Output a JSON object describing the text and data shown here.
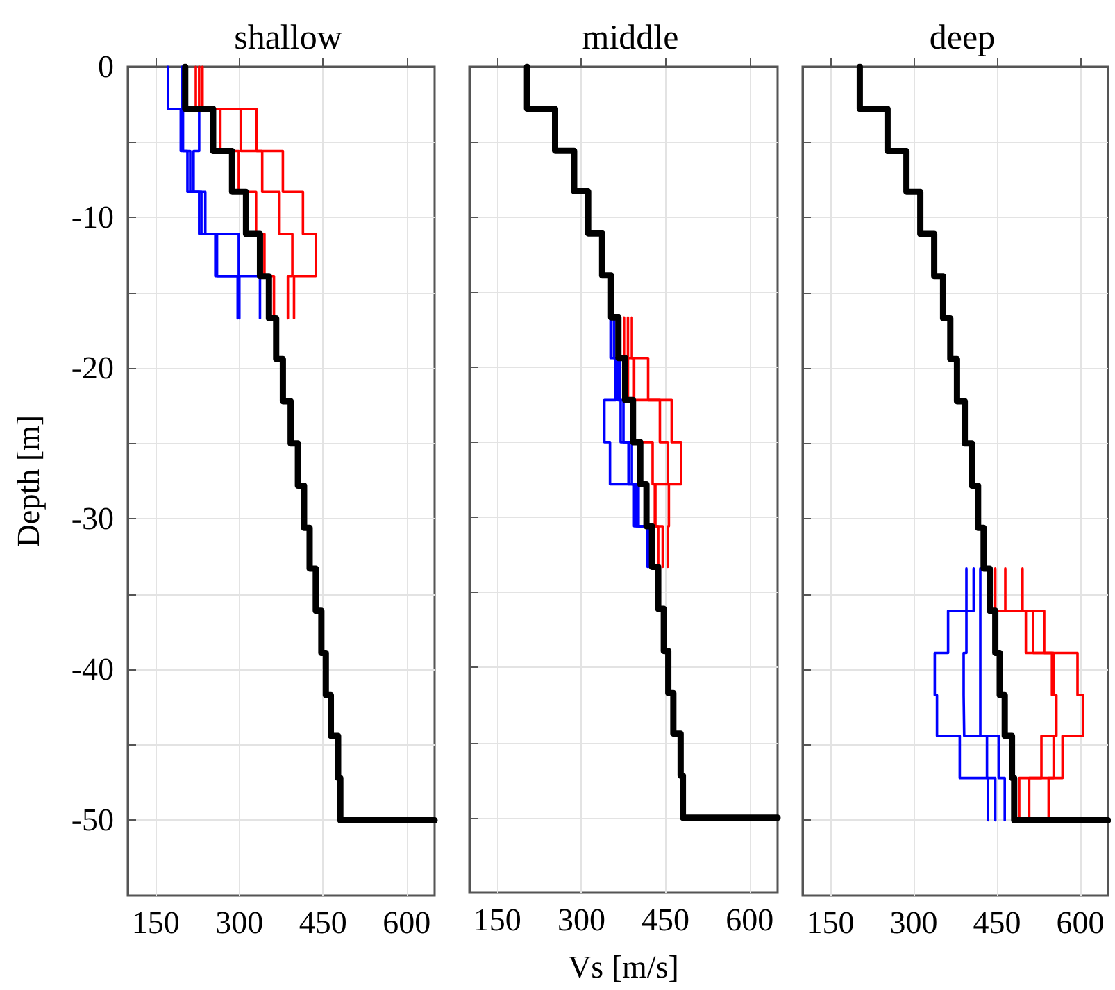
{
  "chart_data": [
    {
      "type": "line",
      "title": "shallow",
      "ylabel": "Depth [m]",
      "xlim": [
        100,
        650
      ],
      "xticks": [
        150,
        300,
        450,
        600
      ],
      "ylim": [
        -55,
        0
      ],
      "yticks": [
        0,
        {
          "value": -5,
          "label": null
        },
        -10,
        {
          "value": -15,
          "label": null
        },
        -20,
        {
          "value": -25,
          "label": null
        },
        -30,
        {
          "value": -35,
          "label": null
        },
        -40,
        {
          "value": -45,
          "label": null
        },
        -50
      ],
      "grid": true,
      "marker": "none",
      "line_style": "solid",
      "series": [
        {
          "color": "#0000ff",
          "x": [
            172,
            172,
            195,
            195,
            207,
            207,
            228,
            228,
            257,
            257,
            297,
            297
          ],
          "values": [
            0,
            -2.8,
            -2.8,
            -5.6,
            -5.6,
            -8.3,
            -8.3,
            -11.1,
            -11.1,
            -13.9,
            -13.9,
            -16.7
          ]
        },
        {
          "color": "#0000ff",
          "x": [
            197,
            197,
            199,
            199,
            212,
            212,
            232,
            232,
            260,
            260,
            300,
            300
          ],
          "values": [
            0,
            -2.8,
            -2.8,
            -5.6,
            -5.6,
            -8.3,
            -8.3,
            -11.1,
            -11.1,
            -13.9,
            -13.9,
            -16.7
          ]
        },
        {
          "color": "#0000ff",
          "x": [
            199,
            199,
            228,
            228,
            218,
            218,
            239,
            239,
            299,
            299,
            337,
            337
          ],
          "values": [
            0,
            -2.8,
            -2.8,
            -5.6,
            -5.6,
            -8.3,
            -8.3,
            -11.1,
            -11.1,
            -13.9,
            -13.9,
            -16.7
          ]
        },
        {
          "color": "#ff0000",
          "x": [
            222,
            222,
            266,
            266,
            299,
            299,
            330,
            330,
            345,
            345,
            362,
            362
          ],
          "values": [
            0,
            -2.8,
            -2.8,
            -5.6,
            -5.6,
            -8.3,
            -8.3,
            -11.1,
            -11.1,
            -13.9,
            -13.9,
            -16.7
          ]
        },
        {
          "color": "#ff0000",
          "x": [
            228,
            228,
            303,
            303,
            341,
            341,
            372,
            372,
            395,
            395,
            387,
            387
          ],
          "values": [
            0,
            -2.8,
            -2.8,
            -5.6,
            -5.6,
            -8.3,
            -8.3,
            -11.1,
            -11.1,
            -13.9,
            -13.9,
            -16.7
          ]
        },
        {
          "color": "#ff0000",
          "x": [
            234,
            234,
            331,
            331,
            378,
            378,
            414,
            414,
            437,
            437,
            398,
            398
          ],
          "values": [
            0,
            -2.8,
            -2.8,
            -5.6,
            -5.6,
            -8.3,
            -8.3,
            -11.1,
            -11.1,
            -13.9,
            -13.9,
            -16.7
          ]
        },
        {
          "color": "#000000",
          "x": [
            203,
            203,
            253,
            253,
            287,
            287,
            312,
            312,
            337,
            337,
            353,
            353,
            366,
            366,
            378,
            378,
            392,
            392,
            405,
            405,
            416,
            416,
            426,
            426,
            437,
            437,
            447,
            447,
            455,
            455,
            464,
            464,
            477,
            477,
            481,
            481,
            650
          ],
          "values": [
            0,
            -2.8,
            -2.8,
            -5.6,
            -5.6,
            -8.3,
            -8.3,
            -11.1,
            -11.1,
            -13.9,
            -13.9,
            -16.7,
            -16.7,
            -19.4,
            -19.4,
            -22.2,
            -22.2,
            -25,
            -25,
            -27.8,
            -27.8,
            -30.6,
            -30.6,
            -33.3,
            -33.3,
            -36.1,
            -36.1,
            -38.9,
            -38.9,
            -41.7,
            -41.7,
            -44.4,
            -44.4,
            -47.2,
            -47.2,
            -50,
            -50
          ]
        }
      ]
    },
    {
      "type": "line",
      "title": "middle",
      "xlabel": "Vs [m/s]",
      "xlim": [
        100,
        650
      ],
      "xticks": [
        150,
        300,
        450,
        600
      ],
      "ylim": [
        -55,
        0
      ],
      "yticks": [
        0,
        {
          "value": -5,
          "label": null
        },
        -10,
        {
          "value": -15,
          "label": null
        },
        -20,
        {
          "value": -25,
          "label": null
        },
        -30,
        {
          "value": -35,
          "label": null
        },
        -40,
        {
          "value": -45,
          "label": null
        },
        -50
      ],
      "grid": true,
      "marker": "none",
      "line_style": "solid",
      "tick_labels": "x",
      "series": [
        {
          "color": "#0000ff",
          "x": [
            352,
            352,
            361,
            361,
            341,
            341,
            351,
            351,
            394,
            394,
            418,
            418
          ],
          "values": [
            -16.7,
            -19.4,
            -19.4,
            -22.2,
            -22.2,
            -25,
            -25,
            -27.8,
            -27.8,
            -30.6,
            -30.6,
            -33.3
          ]
        },
        {
          "color": "#0000ff",
          "x": [
            358,
            358,
            365,
            365,
            370,
            370,
            384,
            384,
            398,
            398,
            420,
            420
          ],
          "values": [
            -16.7,
            -19.4,
            -19.4,
            -22.2,
            -22.2,
            -25,
            -25,
            -27.8,
            -27.8,
            -30.6,
            -30.6,
            -33.3
          ]
        },
        {
          "color": "#0000ff",
          "x": [
            363,
            363,
            369,
            369,
            375,
            375,
            390,
            390,
            402,
            402,
            423,
            423
          ],
          "values": [
            -16.7,
            -19.4,
            -19.4,
            -22.2,
            -22.2,
            -25,
            -25,
            -27.8,
            -27.8,
            -30.6,
            -30.6,
            -33.3
          ]
        },
        {
          "color": "#ff0000",
          "x": [
            376,
            376,
            383,
            383,
            394,
            394,
            427,
            427,
            431,
            431,
            437,
            437
          ],
          "values": [
            -16.7,
            -19.4,
            -19.4,
            -22.2,
            -22.2,
            -25,
            -25,
            -27.8,
            -27.8,
            -30.6,
            -30.6,
            -33.3
          ]
        },
        {
          "color": "#ff0000",
          "x": [
            383,
            383,
            394,
            394,
            440,
            440,
            454,
            454,
            432,
            432,
            445,
            445
          ],
          "values": [
            -16.7,
            -19.4,
            -19.4,
            -22.2,
            -22.2,
            -25,
            -25,
            -27.8,
            -27.8,
            -30.6,
            -30.6,
            -33.3
          ]
        },
        {
          "color": "#ff0000",
          "x": [
            390,
            390,
            419,
            419,
            461,
            461,
            478,
            478,
            456,
            456,
            454,
            454
          ],
          "values": [
            -16.7,
            -19.4,
            -19.4,
            -22.2,
            -22.2,
            -25,
            -25,
            -27.8,
            -27.8,
            -30.6,
            -30.6,
            -33.3
          ]
        },
        {
          "color": "#000000",
          "x": [
            203,
            203,
            253,
            253,
            287,
            287,
            312,
            312,
            337,
            337,
            353,
            353,
            366,
            366,
            378,
            378,
            392,
            392,
            405,
            405,
            416,
            416,
            426,
            426,
            437,
            437,
            447,
            447,
            455,
            455,
            464,
            464,
            477,
            477,
            481,
            481,
            650
          ],
          "values": [
            0,
            -2.8,
            -2.8,
            -5.6,
            -5.6,
            -8.3,
            -8.3,
            -11.1,
            -11.1,
            -13.9,
            -13.9,
            -16.7,
            -16.7,
            -19.4,
            -19.4,
            -22.2,
            -22.2,
            -25,
            -25,
            -27.8,
            -27.8,
            -30.6,
            -30.6,
            -33.3,
            -33.3,
            -36.1,
            -36.1,
            -38.9,
            -38.9,
            -41.7,
            -41.7,
            -44.4,
            -44.4,
            -47.2,
            -47.2,
            -50,
            -50
          ]
        }
      ]
    },
    {
      "type": "line",
      "title": "deep",
      "xlim": [
        100,
        650
      ],
      "xticks": [
        150,
        300,
        450,
        600
      ],
      "ylim": [
        -55,
        0
      ],
      "yticks": [
        0,
        {
          "value": -5,
          "label": null
        },
        -10,
        {
          "value": -15,
          "label": null
        },
        -20,
        {
          "value": -25,
          "label": null
        },
        -30,
        {
          "value": -35,
          "label": null
        },
        -40,
        {
          "value": -45,
          "label": null
        },
        -50
      ],
      "grid": true,
      "marker": "none",
      "line_style": "solid",
      "tick_labels": "x",
      "series": [
        {
          "color": "#0000ff",
          "x": [
            395,
            395,
            362,
            362,
            338,
            338,
            342,
            342,
            383,
            383,
            434,
            434
          ],
          "values": [
            -33.3,
            -36.1,
            -36.1,
            -38.9,
            -38.9,
            -41.7,
            -41.7,
            -44.4,
            -44.4,
            -47.2,
            -47.2,
            -50
          ]
        },
        {
          "color": "#0000ff",
          "x": [
            408,
            408,
            395,
            395,
            390,
            390,
            391,
            391,
            432,
            432,
            447,
            447
          ],
          "values": [
            -33.3,
            -36.1,
            -36.1,
            -38.9,
            -38.9,
            -41.7,
            -41.7,
            -44.4,
            -44.4,
            -47.2,
            -47.2,
            -50
          ]
        },
        {
          "color": "#0000ff",
          "x": [
            420,
            420,
            420,
            420,
            420,
            420,
            420,
            420,
            453,
            453,
            464,
            464
          ],
          "values": [
            -33.3,
            -36.1,
            -36.1,
            -38.9,
            -38.9,
            -41.7,
            -41.7,
            -44.4,
            -44.4,
            -47.2,
            -47.2,
            -50
          ]
        },
        {
          "color": "#ff0000",
          "x": [
            447,
            447,
            502,
            502,
            549,
            549,
            556,
            556,
            530,
            530,
            490,
            490
          ],
          "values": [
            -33.3,
            -36.1,
            -36.1,
            -38.9,
            -38.9,
            -41.7,
            -41.7,
            -44.4,
            -44.4,
            -47.2,
            -47.2,
            -50
          ]
        },
        {
          "color": "#ff0000",
          "x": [
            465,
            465,
            515,
            515,
            552,
            552,
            557,
            557,
            552,
            552,
            508,
            508
          ],
          "values": [
            -33.3,
            -36.1,
            -36.1,
            -38.9,
            -38.9,
            -41.7,
            -41.7,
            -44.4,
            -44.4,
            -47.2,
            -47.2,
            -50
          ]
        },
        {
          "color": "#ff0000",
          "x": [
            496,
            496,
            535,
            535,
            595,
            595,
            605,
            605,
            568,
            568,
            543,
            543
          ],
          "values": [
            -33.3,
            -36.1,
            -36.1,
            -38.9,
            -38.9,
            -41.7,
            -41.7,
            -44.4,
            -44.4,
            -47.2,
            -47.2,
            -50
          ]
        },
        {
          "color": "#000000",
          "x": [
            203,
            203,
            253,
            253,
            287,
            287,
            312,
            312,
            337,
            337,
            353,
            353,
            366,
            366,
            378,
            378,
            392,
            392,
            405,
            405,
            416,
            416,
            426,
            426,
            437,
            437,
            447,
            447,
            455,
            455,
            464,
            464,
            477,
            477,
            481,
            481,
            650
          ],
          "values": [
            0,
            -2.8,
            -2.8,
            -5.6,
            -5.6,
            -8.3,
            -8.3,
            -11.1,
            -11.1,
            -13.9,
            -13.9,
            -16.7,
            -16.7,
            -19.4,
            -19.4,
            -22.2,
            -22.2,
            -25,
            -25,
            -27.8,
            -27.8,
            -30.6,
            -30.6,
            -33.3,
            -33.3,
            -36.1,
            -36.1,
            -38.9,
            -38.9,
            -41.7,
            -41.7,
            -44.4,
            -44.4,
            -47.2,
            -47.2,
            -50,
            -50
          ]
        }
      ]
    }
  ]
}
